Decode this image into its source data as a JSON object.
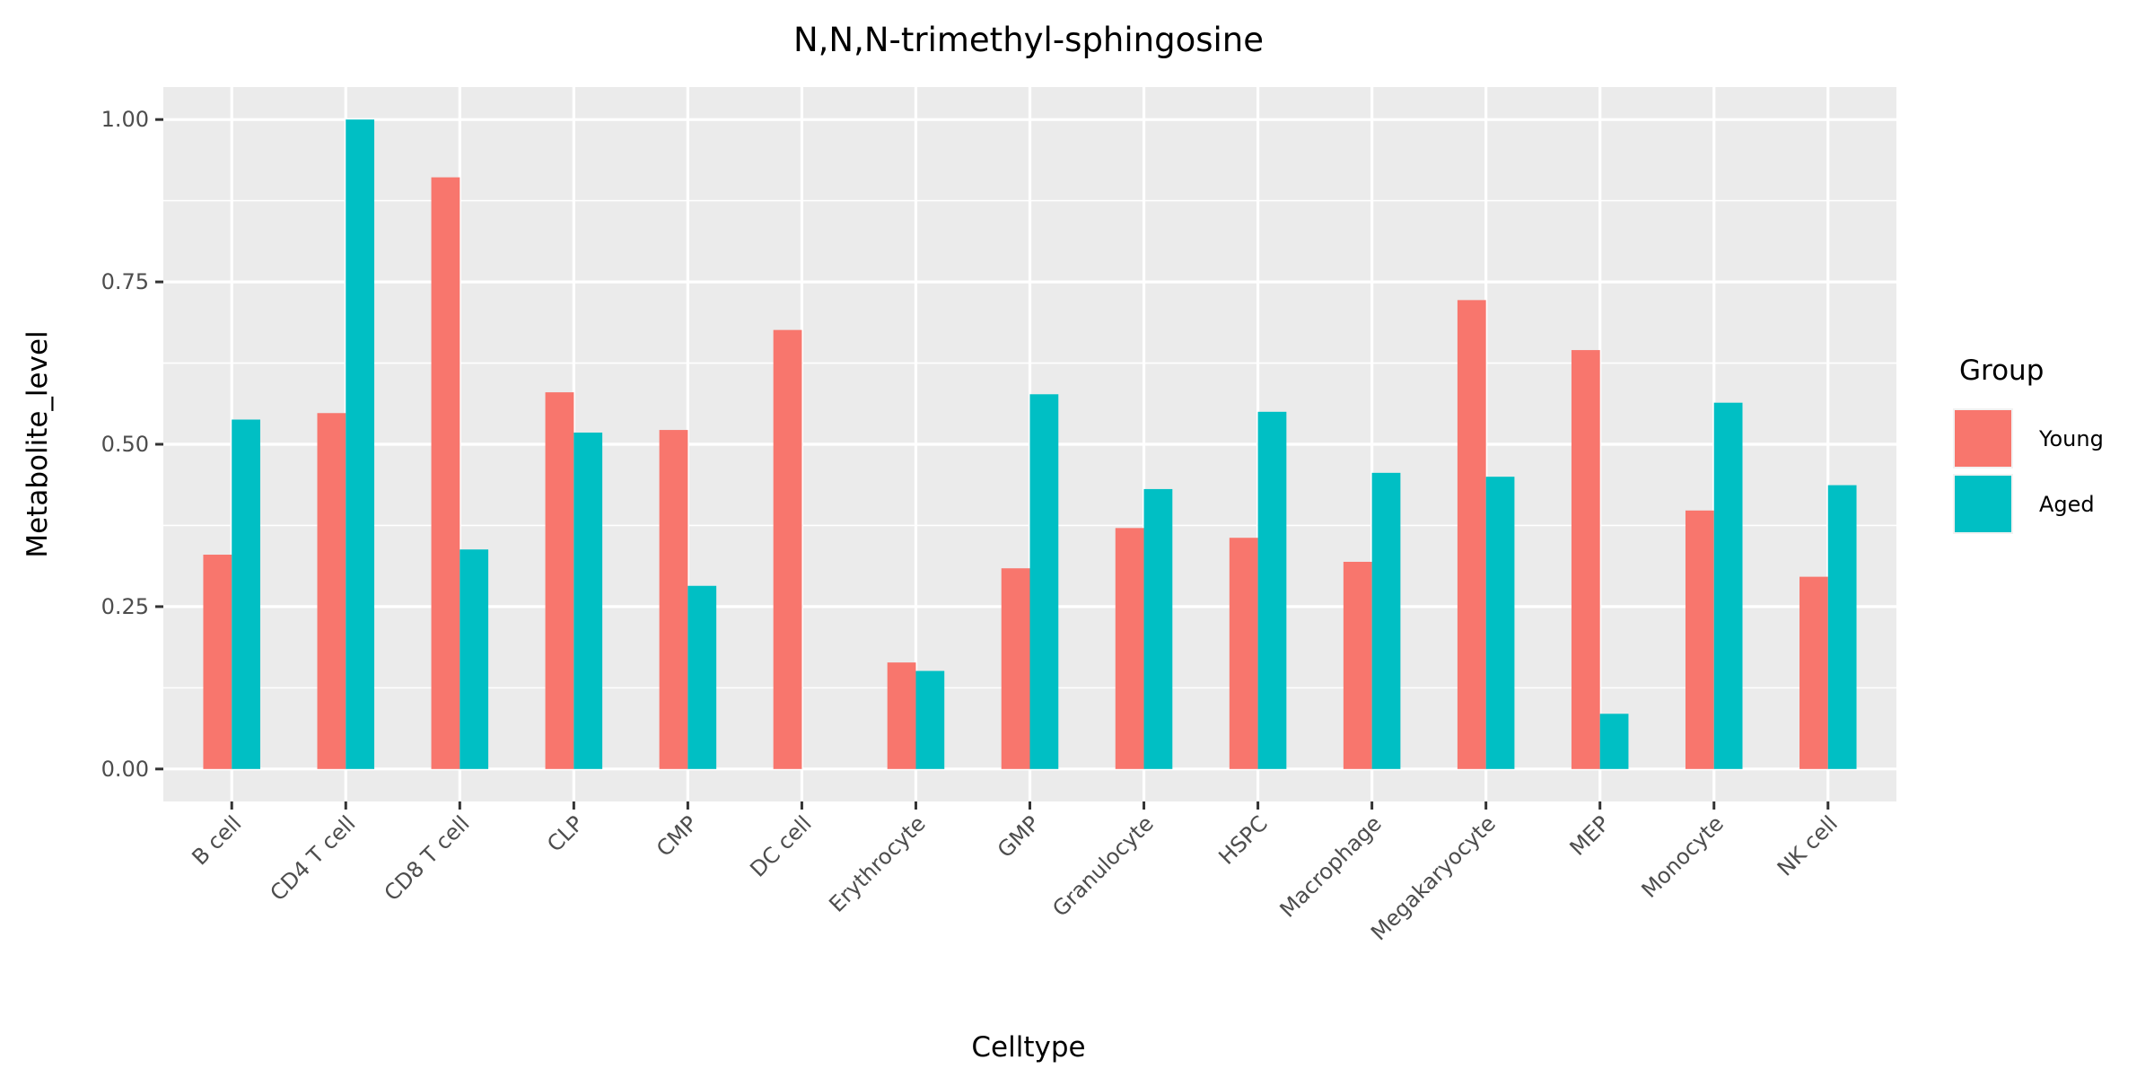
{
  "chart_data": {
    "type": "bar",
    "title": "N,N,N-trimethyl-sphingosine",
    "xlabel": "Celltype",
    "ylabel": "Metabolite_level",
    "ylim": [
      -0.05,
      1.05
    ],
    "yticks": [
      0.0,
      0.25,
      0.5,
      0.75,
      1.0
    ],
    "ytick_labels": [
      "0.00",
      "0.25",
      "0.50",
      "0.75",
      "1.00"
    ],
    "grid": true,
    "legend_position": "right",
    "legend_title": "Group",
    "categories": [
      "B cell",
      "CD4 T cell",
      "CD8 T cell",
      "CLP",
      "CMP",
      "DC cell",
      "Erythrocyte",
      "GMP",
      "Granulocyte",
      "HSPC",
      "Macrophage",
      "Megakaryocyte",
      "MEP",
      "Monocyte",
      "NK cell"
    ],
    "series": [
      {
        "name": "Young",
        "color": "#F8766D",
        "values": [
          0.33,
          0.548,
          0.911,
          0.58,
          0.522,
          0.676,
          0.164,
          0.309,
          0.371,
          0.356,
          0.319,
          0.722,
          0.645,
          0.398,
          0.296
        ]
      },
      {
        "name": "Aged",
        "color": "#00BFC4",
        "values": [
          0.538,
          1.0,
          0.338,
          0.518,
          0.282,
          0.0,
          0.151,
          0.577,
          0.431,
          0.55,
          0.456,
          0.45,
          0.085,
          0.564,
          0.437
        ]
      }
    ]
  }
}
